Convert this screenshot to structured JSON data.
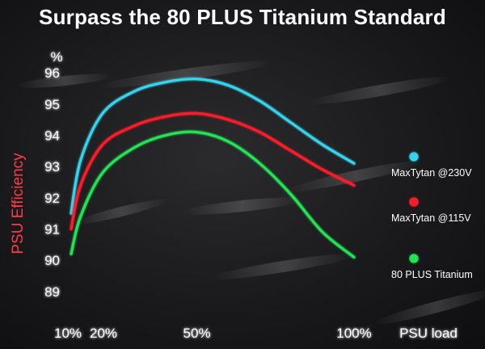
{
  "chart_data": {
    "type": "line",
    "title": "Surpass the 80 PLUS Titanium Standard",
    "xlabel": "PSU load",
    "ylabel": "PSU Efficiency",
    "y_unit_label": "%",
    "xlim": [
      10,
      100
    ],
    "ylim": [
      88.3,
      96.7
    ],
    "x_ticks": [
      {
        "value": 10,
        "label": "10%"
      },
      {
        "value": 20,
        "label": "20%"
      },
      {
        "value": 50,
        "label": "50%"
      },
      {
        "value": 100,
        "label": "100%"
      }
    ],
    "y_ticks": [
      89,
      90,
      91,
      92,
      93,
      94,
      95,
      96
    ],
    "legend_position": "right",
    "series": [
      {
        "name": "MaxTytan @230V",
        "color": "#35d4ec",
        "x": [
          10,
          13,
          20,
          30,
          40,
          50,
          60,
          70,
          80,
          90,
          100
        ],
        "y": [
          91.5,
          93.2,
          94.7,
          95.4,
          95.7,
          95.8,
          95.6,
          95.1,
          94.4,
          93.7,
          93.1
        ]
      },
      {
        "name": "MaxTytan @115V",
        "color": "#ff1e2a",
        "x": [
          10,
          13,
          20,
          30,
          40,
          50,
          60,
          70,
          80,
          90,
          100
        ],
        "y": [
          91.0,
          92.4,
          93.7,
          94.3,
          94.6,
          94.7,
          94.5,
          94.1,
          93.5,
          92.9,
          92.4
        ]
      },
      {
        "name": "80 PLUS Titanium",
        "color": "#23e455",
        "x": [
          10,
          13,
          20,
          30,
          40,
          50,
          60,
          70,
          80,
          90,
          100
        ],
        "y": [
          90.2,
          91.4,
          92.8,
          93.6,
          94.0,
          94.1,
          93.8,
          93.1,
          92.1,
          90.9,
          90.1
        ]
      }
    ]
  }
}
